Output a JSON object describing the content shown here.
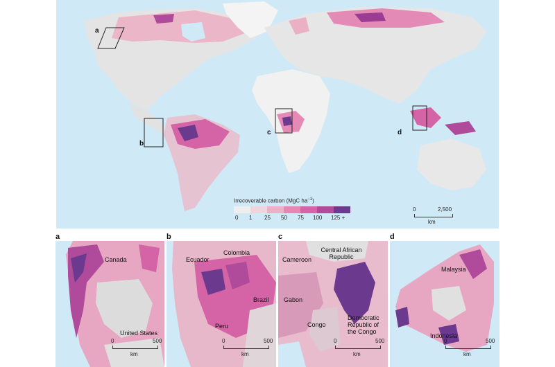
{
  "main_map": {
    "legend": {
      "title": "Irrecoverable carbon (MgC ha",
      "title_sup": "−1",
      "title_end": ")",
      "ticks": [
        "0",
        "1",
        "25",
        "50",
        "75",
        "100",
        "125 +"
      ],
      "colors": [
        "#eeeeee",
        "#f2d3dc",
        "#ebb1c6",
        "#e488b2",
        "#d464a5",
        "#b04a9a",
        "#6b3a8e"
      ]
    },
    "scale": {
      "start": "0",
      "end": "2,500",
      "unit": "km"
    },
    "region_labels": [
      "a",
      "b",
      "c",
      "d"
    ]
  },
  "insets": [
    {
      "letter": "a",
      "places": [
        "Canada",
        "United States"
      ],
      "scale": {
        "start": "0",
        "end": "500",
        "unit": "km"
      }
    },
    {
      "letter": "b",
      "places": [
        "Ecuador",
        "Colombia",
        "Peru",
        "Brazil"
      ],
      "scale": {
        "start": "0",
        "end": "500",
        "unit": "km"
      }
    },
    {
      "letter": "c",
      "places": [
        "Cameroon",
        "Central African Republic",
        "Gabon",
        "Congo",
        "Democratic Republic of the Congo"
      ],
      "scale": {
        "start": "0",
        "end": "500",
        "unit": "km"
      }
    },
    {
      "letter": "d",
      "places": [
        "Malaysia",
        "Indonesia"
      ],
      "scale": {
        "start": "0",
        "end": "500",
        "unit": "km"
      }
    }
  ]
}
